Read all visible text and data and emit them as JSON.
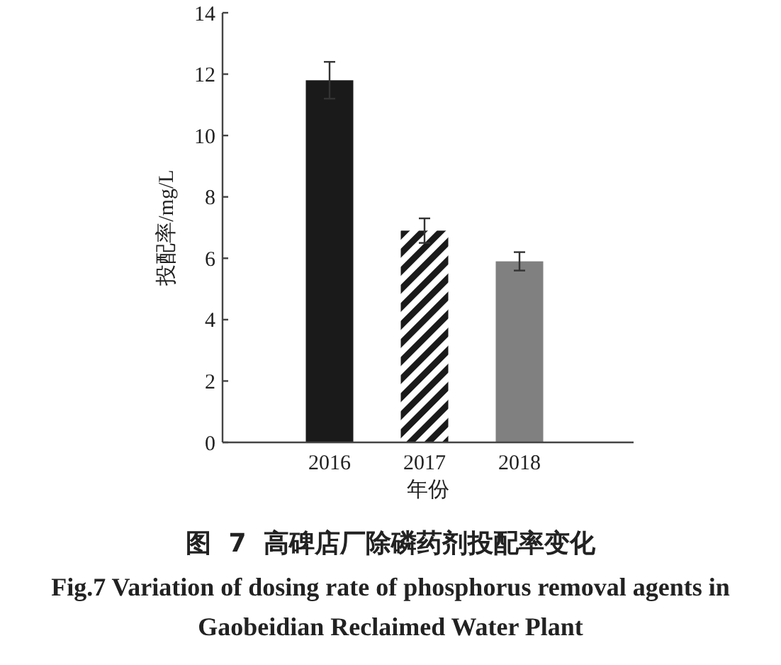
{
  "chart_data": {
    "type": "bar",
    "xlabel": "年份",
    "ylabel": "投配率/mg/L",
    "categories": [
      "2016",
      "2017",
      "2018"
    ],
    "values": [
      11.8,
      6.9,
      5.9
    ],
    "errors": [
      0.6,
      0.4,
      0.3
    ],
    "colors": [
      "#1a1a1a",
      "#1a1a1a",
      "#808080"
    ],
    "ylim": [
      0,
      14
    ],
    "yticks": [
      0,
      2,
      4,
      6,
      8,
      10,
      12,
      14
    ],
    "annotations": [
      "图 7 高碑店厂除磷药剂投配率变化",
      "Fig.7 Variation of dosing rate of phosphorus removal agents in Gaobeidian Reclaimed Water Plant"
    ]
  }
}
